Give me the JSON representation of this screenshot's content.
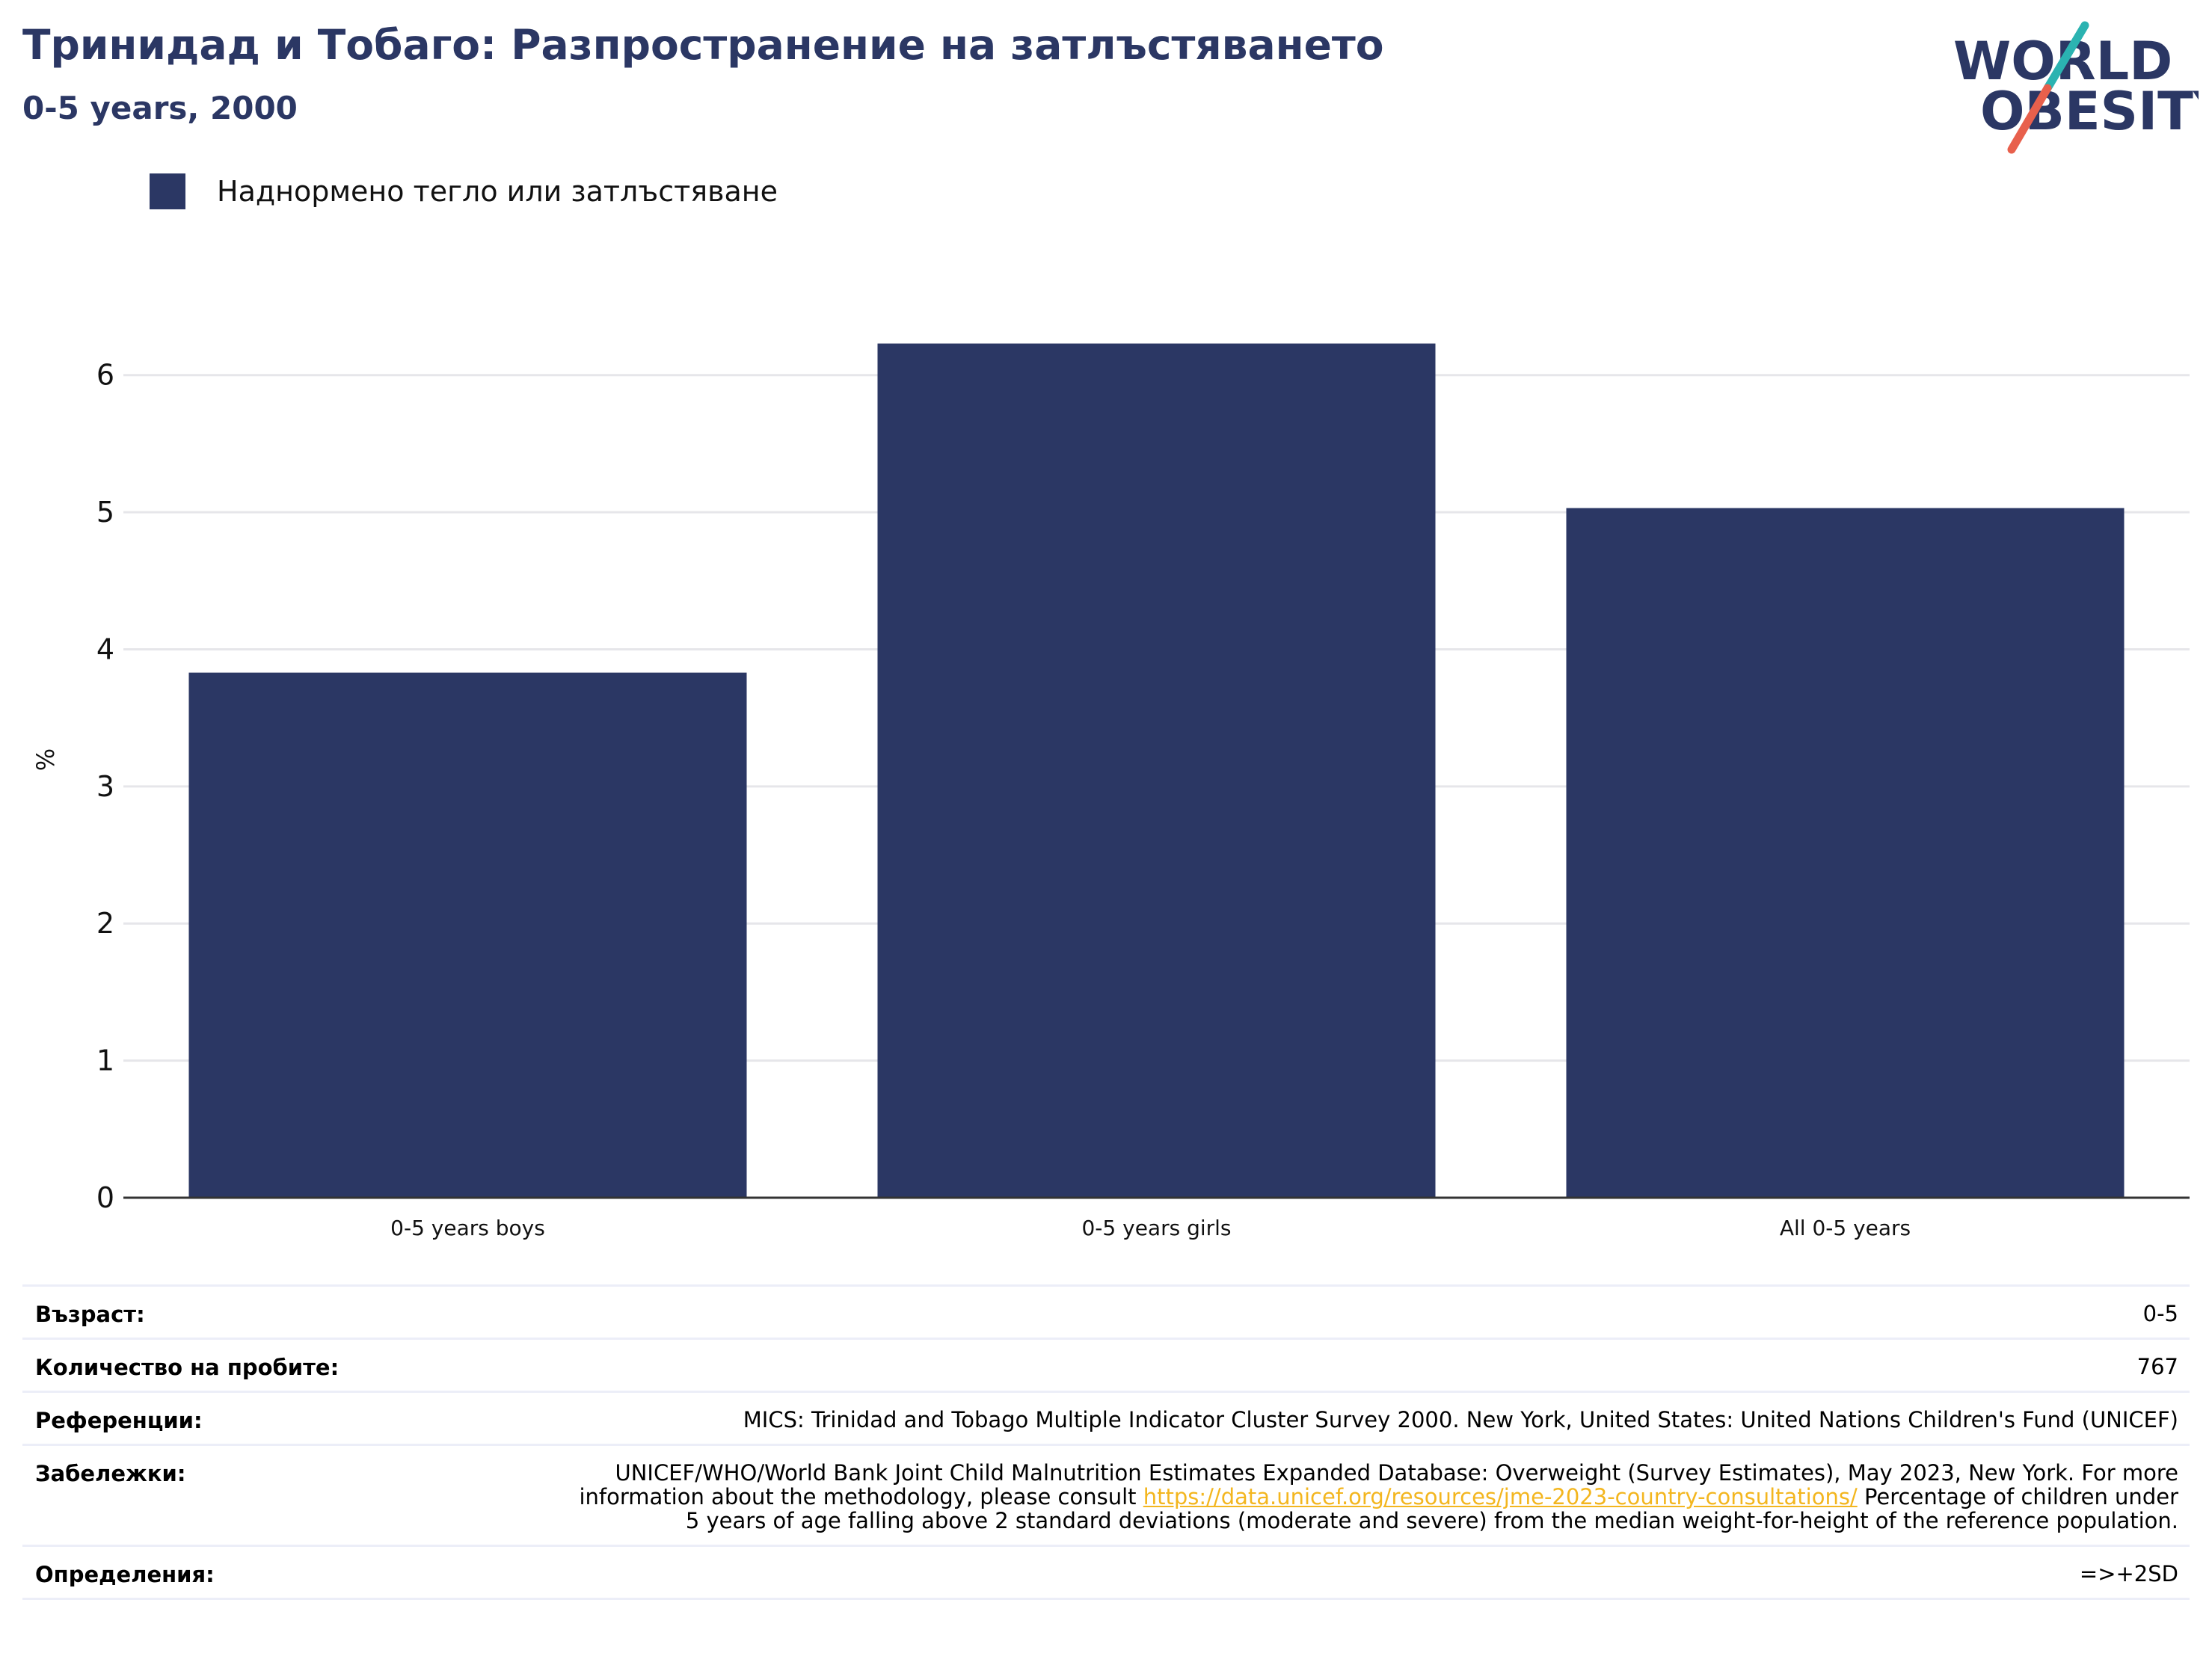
{
  "title": "Тринидад и Тобаго: Разпространение на затлъстяването",
  "subtitle": "0-5 years, 2000",
  "logo": {
    "line1": "WORLD",
    "line2": "OBESITY"
  },
  "colors": {
    "bar": "#2b3764",
    "title": "#2b3764",
    "grid": "#e6e6ea",
    "axis": "#333333",
    "link": "#f3b61f",
    "logo_teal": "#2bb3b1",
    "logo_red": "#e8604c"
  },
  "chart_data": {
    "type": "bar",
    "categories": [
      "0-5 years boys",
      "0-5 years girls",
      "All 0-5 years"
    ],
    "series": [
      {
        "name": "Наднормено тегло или затлъстяване",
        "values": [
          3.83,
          6.23,
          5.03
        ]
      }
    ],
    "ylabel": "%",
    "xlabel": "",
    "ylim": [
      0,
      6.5
    ],
    "yticks": [
      0,
      1,
      2,
      3,
      4,
      5,
      6
    ],
    "grid": true,
    "legend": "top-left"
  },
  "info": {
    "age_label": "Възраст:",
    "age_value": "0-5",
    "sample_label": "Количество на пробите:",
    "sample_value": "767",
    "references_label": "Референции:",
    "references_value": "MICS: Trinidad and Tobago Multiple Indicator Cluster Survey 2000. New York, United States: United Nations Children's Fund (UNICEF)",
    "notes_label": "Забележки:",
    "notes_before": "UNICEF/WHO/World Bank Joint Child Malnutrition Estimates Expanded Database: Overweight (Survey Estimates), May 2023, New York. For more information about the methodology, please consult ",
    "notes_link": "https://data.unicef.org/resources/jme-2023-country-consultations/",
    "notes_after": " Percentage of children under 5 years of age falling above 2 standard deviations (moderate and severe) from the median weight-for-height of the reference population.",
    "definitions_label": "Определения:",
    "definitions_value": "=>+2SD"
  }
}
